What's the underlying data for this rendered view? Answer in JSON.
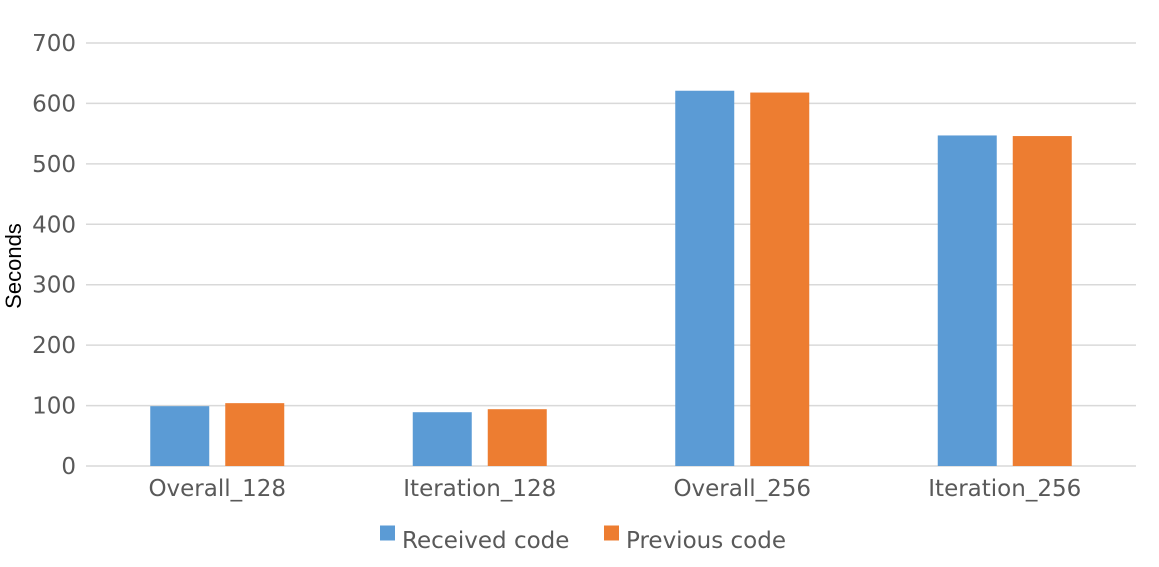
{
  "chart_data": {
    "type": "bar",
    "title": "",
    "xlabel": "",
    "ylabel": "Seconds",
    "ylim": [
      0,
      700
    ],
    "yticks": [
      0,
      100,
      200,
      300,
      400,
      500,
      600,
      700
    ],
    "grid": true,
    "legend_position": "bottom",
    "categories": [
      "Overall_128",
      "Iteration_128",
      "Overall_256",
      "Iteration_256"
    ],
    "series": [
      {
        "name": "Received code",
        "color": "#5B9BD5",
        "values": [
          99,
          89,
          621,
          547
        ]
      },
      {
        "name": "Previous code",
        "color": "#ED7D31",
        "values": [
          104,
          94,
          618,
          546
        ]
      }
    ]
  },
  "colors": {
    "gridline": "#D9D9D9",
    "tick_text": "#595959",
    "axis_title_text": "#000000"
  }
}
